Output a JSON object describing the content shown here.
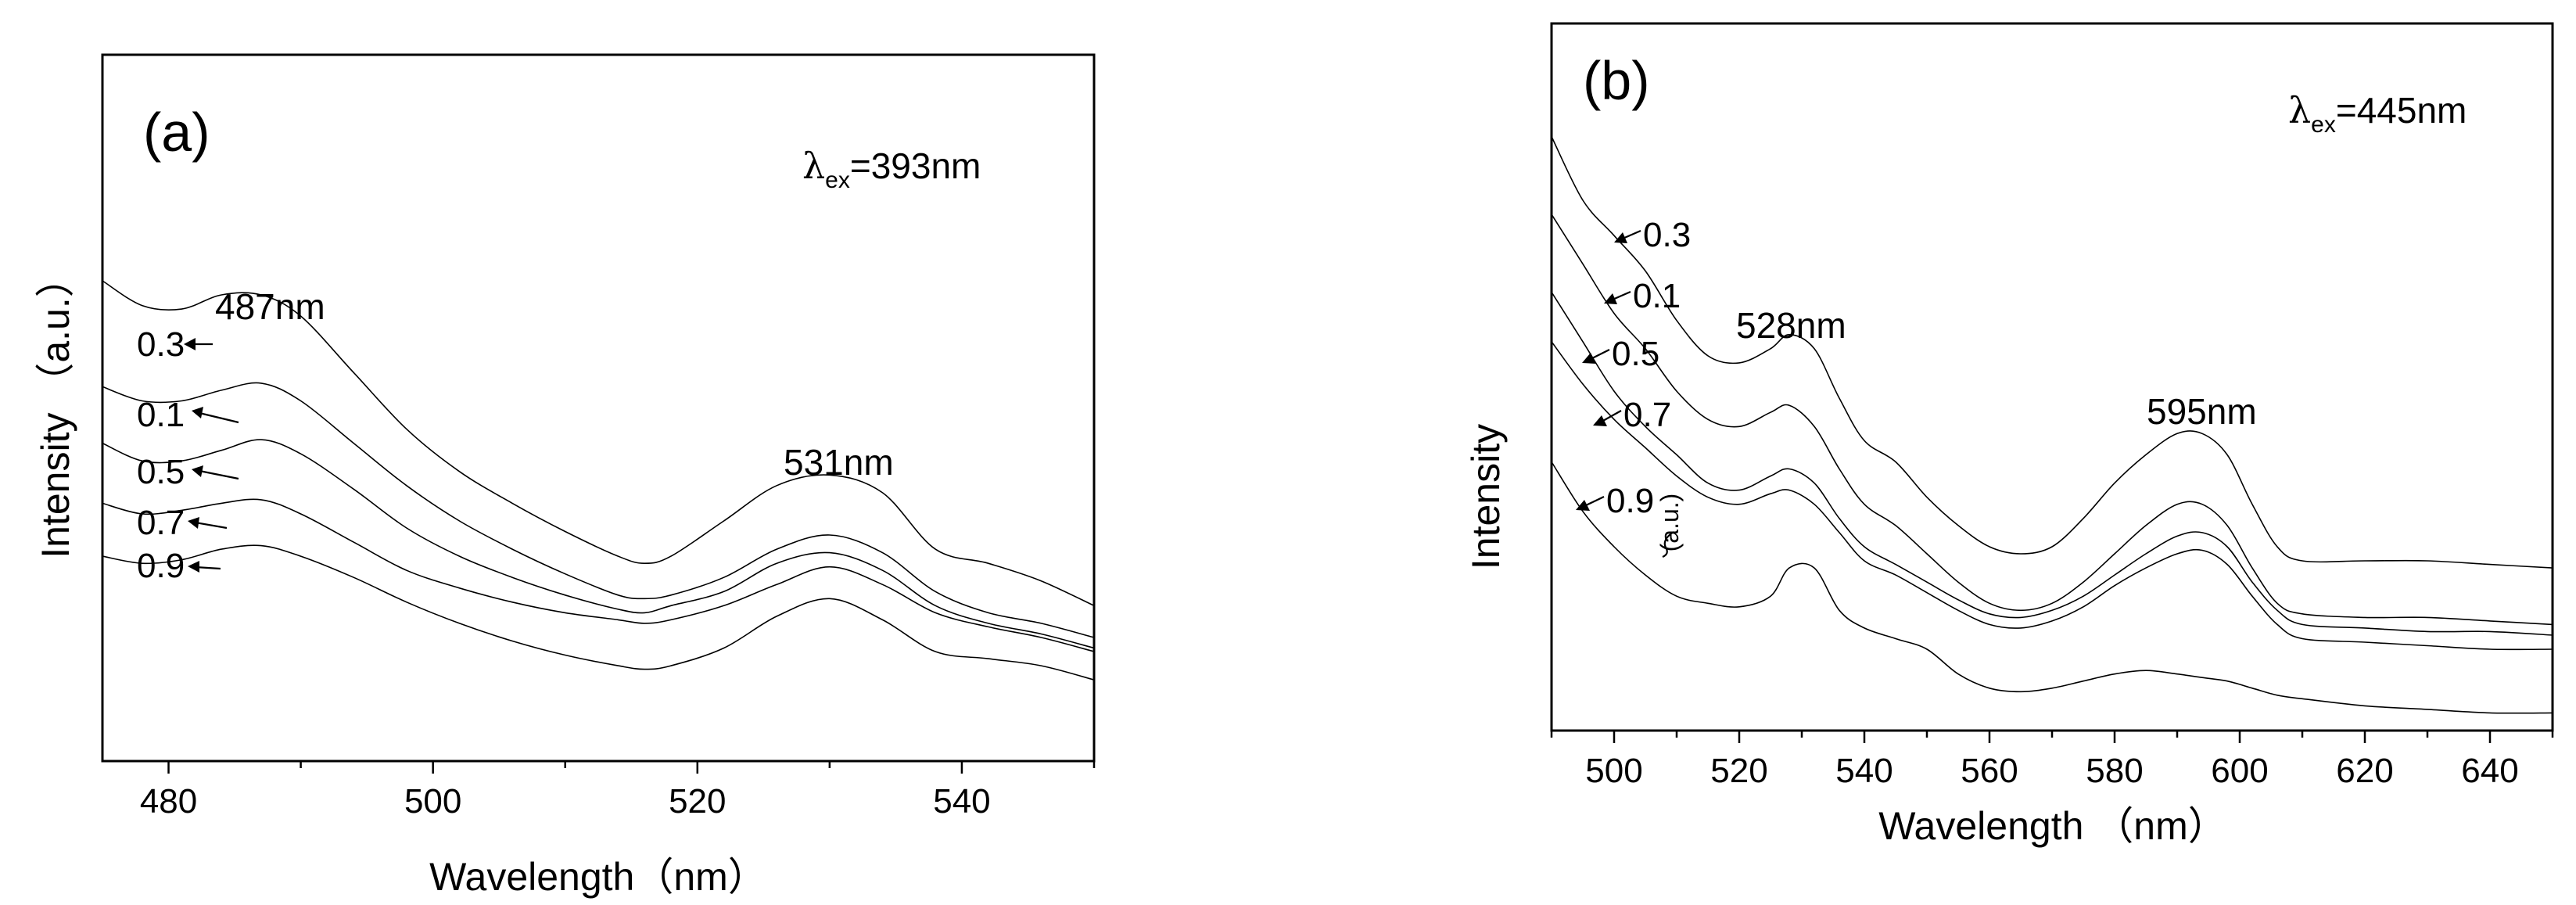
{
  "chart_data": [
    {
      "type": "line",
      "panel_label": "(a)",
      "excitation": {
        "symbol": "λ",
        "subscript": "ex",
        "value": "=393nm"
      },
      "xlabel": "Wavelength（nm）",
      "ylabel": "Intensity （a.u.）",
      "xlim": [
        475,
        550
      ],
      "ylim": [
        0,
        100
      ],
      "x_ticks": [
        480,
        500,
        520,
        540
      ],
      "peaks": [
        {
          "label": "487nm",
          "x": 487
        },
        {
          "label": "531nm",
          "x": 531
        }
      ],
      "series": [
        {
          "name": "0.3",
          "x": [
            475,
            478,
            481,
            484,
            487,
            490,
            494,
            498,
            502,
            506,
            510,
            514,
            516,
            518,
            522,
            526,
            530,
            534,
            538,
            542,
            546,
            550
          ],
          "y": [
            68,
            64.5,
            64,
            66,
            66,
            63,
            55,
            47,
            41,
            36.5,
            32.5,
            29,
            28,
            29,
            34,
            39,
            40.5,
            38,
            30,
            28,
            25.5,
            22
          ]
        },
        {
          "name": "0.1",
          "x": [
            475,
            478,
            481,
            484,
            487,
            490,
            494,
            498,
            502,
            506,
            510,
            514,
            516,
            518,
            522,
            526,
            530,
            534,
            538,
            542,
            546,
            550
          ],
          "y": [
            53,
            51,
            51,
            52.5,
            53.5,
            51,
            45,
            39,
            34,
            30,
            26.5,
            23.5,
            23,
            23.5,
            26,
            30,
            32,
            29.5,
            24,
            21,
            19.5,
            17.5
          ]
        },
        {
          "name": "0.5",
          "x": [
            475,
            478,
            481,
            484,
            487,
            490,
            494,
            498,
            502,
            506,
            510,
            514,
            516,
            518,
            522,
            526,
            530,
            534,
            538,
            542,
            546,
            550
          ],
          "y": [
            45,
            42.5,
            42.5,
            44,
            45.5,
            43.5,
            38.5,
            33,
            29,
            26,
            23.5,
            21.5,
            21,
            22,
            24,
            28,
            29.5,
            27,
            22,
            19.5,
            18,
            16
          ]
        },
        {
          "name": "0.7",
          "x": [
            475,
            478,
            481,
            484,
            487,
            490,
            494,
            498,
            502,
            506,
            510,
            514,
            516,
            518,
            522,
            526,
            530,
            534,
            538,
            542,
            546,
            550
          ],
          "y": [
            36.5,
            35,
            35.5,
            36.5,
            37,
            35,
            31,
            27,
            24.5,
            22.5,
            21,
            20,
            19.5,
            20,
            22,
            25,
            27.5,
            25,
            21,
            19,
            17.5,
            15.5
          ]
        },
        {
          "name": "0.9",
          "x": [
            475,
            478,
            481,
            484,
            487,
            490,
            494,
            498,
            502,
            506,
            510,
            514,
            516,
            518,
            522,
            526,
            530,
            534,
            538,
            542,
            546,
            550
          ],
          "y": [
            29,
            28,
            28.5,
            30,
            30.5,
            29,
            26,
            22.5,
            19.5,
            17,
            15,
            13.5,
            13,
            13.5,
            16,
            20.5,
            23,
            20,
            15.5,
            14.5,
            13.5,
            11.5
          ]
        }
      ]
    },
    {
      "type": "line",
      "panel_label": "(b)",
      "excitation": {
        "symbol": "λ",
        "subscript": "ex",
        "value": "=445nm"
      },
      "xlabel": "Wavelength （nm）",
      "ylabel": "Intensity",
      "ylabel_extra": "(a.u.)",
      "xlim": [
        490,
        650
      ],
      "ylim": [
        0,
        100
      ],
      "x_ticks": [
        500,
        520,
        540,
        560,
        580,
        600,
        620,
        640
      ],
      "peaks": [
        {
          "label": "528nm",
          "x": 528
        },
        {
          "label": "595nm",
          "x": 595
        }
      ],
      "series": [
        {
          "name": "0.3",
          "x": [
            490,
            495,
            500,
            505,
            510,
            515,
            520,
            525,
            528,
            532,
            536,
            540,
            545,
            550,
            555,
            560,
            565,
            570,
            575,
            580,
            585,
            590,
            594,
            598,
            602,
            606,
            610,
            620,
            630,
            640,
            650
          ],
          "y": [
            84,
            75,
            70,
            65,
            58,
            53,
            52,
            54,
            56,
            54,
            47,
            41,
            38,
            33,
            29,
            26,
            25,
            26,
            30,
            35,
            39,
            42,
            42,
            39,
            32,
            26,
            24,
            24,
            24,
            23.5,
            23
          ]
        },
        {
          "name": "0.1",
          "x": [
            490,
            495,
            500,
            505,
            510,
            515,
            520,
            525,
            528,
            532,
            536,
            540,
            545,
            550,
            555,
            560,
            565,
            570,
            575,
            580,
            585,
            590,
            594,
            598,
            602,
            606,
            610,
            620,
            630,
            640,
            650
          ],
          "y": [
            73,
            66,
            59,
            54,
            48,
            44,
            43,
            45,
            46,
            43,
            37,
            32,
            29,
            25,
            21,
            18,
            17,
            18,
            21,
            25,
            29,
            32,
            32,
            29,
            23,
            18,
            16.5,
            16,
            16,
            15.5,
            15
          ]
        },
        {
          "name": "0.5",
          "x": [
            490,
            495,
            500,
            505,
            510,
            515,
            520,
            525,
            528,
            532,
            536,
            540,
            545,
            550,
            555,
            560,
            565,
            570,
            575,
            580,
            585,
            590,
            594,
            598,
            602,
            606,
            610,
            620,
            630,
            640,
            650
          ],
          "y": [
            62,
            55,
            48,
            43,
            39,
            35,
            34,
            36,
            37,
            35,
            30,
            26,
            23.5,
            21,
            18.5,
            16.5,
            16,
            17,
            19,
            22,
            25,
            27.5,
            28,
            26,
            21,
            17,
            15,
            14.5,
            14,
            14,
            13.5
          ]
        },
        {
          "name": "0.7",
          "x": [
            490,
            495,
            500,
            505,
            510,
            515,
            520,
            525,
            528,
            532,
            536,
            540,
            545,
            550,
            555,
            560,
            565,
            570,
            575,
            580,
            585,
            590,
            594,
            598,
            602,
            606,
            610,
            620,
            630,
            640,
            650
          ],
          "y": [
            55,
            49,
            44,
            40,
            36,
            33,
            32,
            33.5,
            34,
            32,
            28,
            24,
            22,
            19.5,
            17,
            15,
            14.5,
            15.5,
            17.5,
            20.5,
            23,
            25,
            25.5,
            23.5,
            19,
            15,
            13,
            12.5,
            12,
            11.5,
            11.5
          ]
        },
        {
          "name": "0.9",
          "x": [
            490,
            495,
            500,
            505,
            510,
            515,
            520,
            525,
            528,
            532,
            536,
            540,
            545,
            550,
            555,
            560,
            565,
            570,
            575,
            580,
            585,
            590,
            594,
            598,
            602,
            606,
            610,
            620,
            630,
            640,
            650
          ],
          "y": [
            38,
            31,
            26,
            22,
            19,
            18,
            17.5,
            19,
            23,
            23,
            17,
            14.5,
            13,
            11.5,
            8,
            6,
            5.5,
            6,
            7,
            8,
            8.5,
            8,
            7.5,
            7,
            6,
            5,
            4.5,
            3.5,
            3,
            2.5,
            2.5
          ]
        }
      ]
    }
  ]
}
